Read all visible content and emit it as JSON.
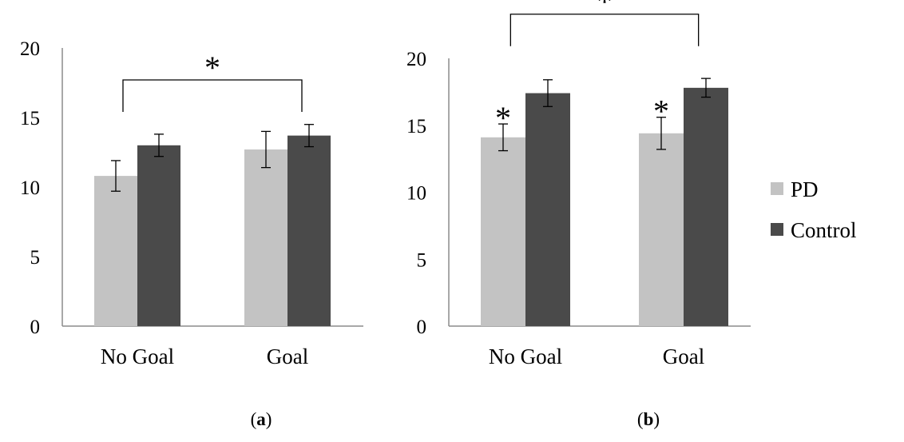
{
  "colors": {
    "pd": "#c3c3c3",
    "control": "#4a4a4a",
    "axis": "#8c8c8c"
  },
  "legend": {
    "items": [
      {
        "label": "PD",
        "color": "#c3c3c3"
      },
      {
        "label": "Control",
        "color": "#4a4a4a"
      }
    ]
  },
  "chart_data": [
    {
      "type": "bar",
      "panel": "(a)",
      "categories": [
        "No Goal",
        "Goal"
      ],
      "series": [
        {
          "name": "PD",
          "values": [
            10.8,
            12.7
          ],
          "errors": [
            1.1,
            1.3
          ]
        },
        {
          "name": "Control",
          "values": [
            13.0,
            13.7
          ],
          "errors": [
            0.8,
            0.8
          ]
        }
      ],
      "ylim": [
        0,
        20
      ],
      "yticks": [
        0,
        5,
        10,
        15,
        20
      ],
      "grid": false,
      "significance": [
        {
          "type": "bracket",
          "between": [
            "No Goal",
            "Goal"
          ],
          "label": "*",
          "level": 17.7
        }
      ],
      "xlabel": "",
      "ylabel": "",
      "title": ""
    },
    {
      "type": "bar",
      "panel": "(b)",
      "categories": [
        "No Goal",
        "Goal"
      ],
      "series": [
        {
          "name": "PD",
          "values": [
            14.1,
            14.4
          ],
          "errors": [
            1.0,
            1.2
          ]
        },
        {
          "name": "Control",
          "values": [
            17.4,
            17.8
          ],
          "errors": [
            1.0,
            0.7
          ]
        }
      ],
      "ylim": [
        0,
        20
      ],
      "yticks": [
        0,
        5,
        10,
        15,
        20
      ],
      "grid": false,
      "significance": [
        {
          "type": "bracket",
          "between": [
            "No Goal",
            "Goal"
          ],
          "label": "*",
          "level": 23.3
        },
        {
          "type": "marker",
          "category": "No Goal",
          "series": "PD",
          "label": "*"
        },
        {
          "type": "marker",
          "category": "Goal",
          "series": "PD",
          "label": "*"
        }
      ],
      "xlabel": "",
      "ylabel": "",
      "title": ""
    }
  ]
}
